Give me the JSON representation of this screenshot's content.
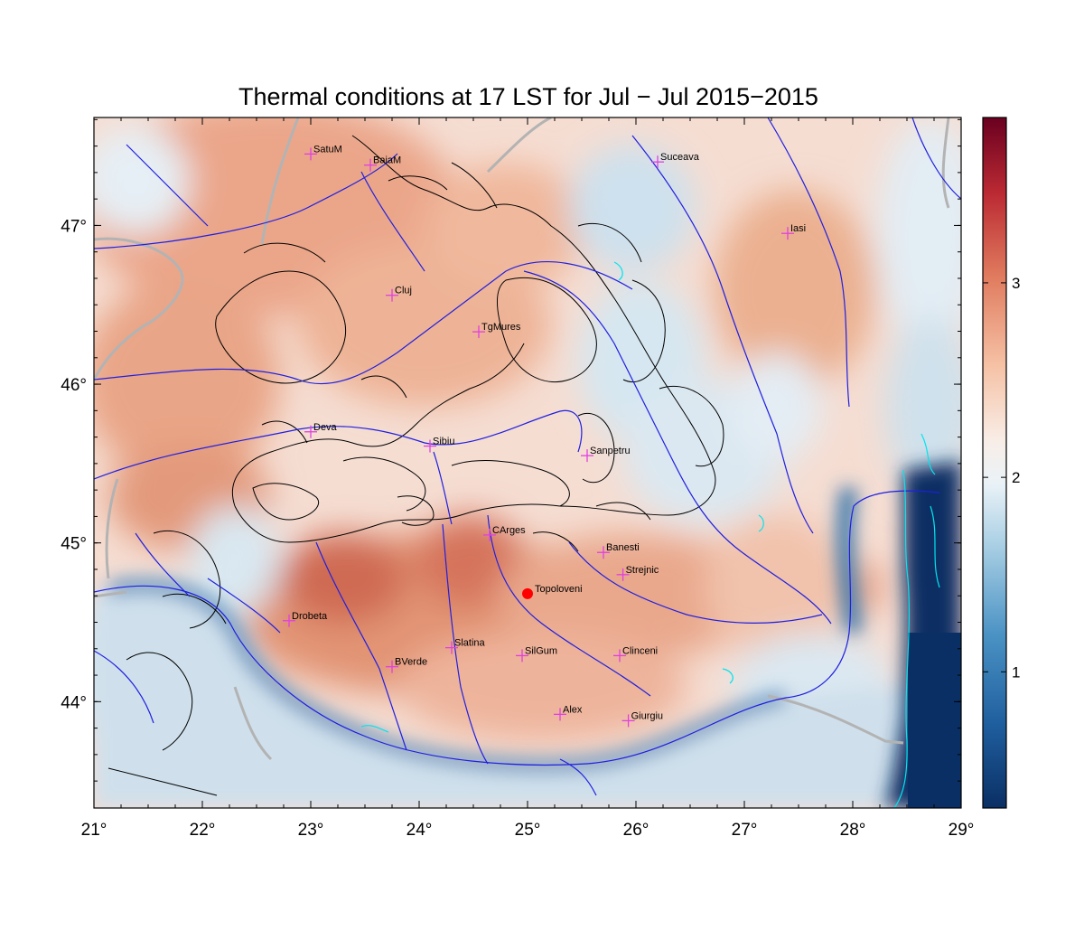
{
  "title": "Thermal conditions at 17 LST for Jul − Jul  2015−2015",
  "map": {
    "lon_range": [
      21,
      29
    ],
    "lat_range": [
      43.33,
      47.68
    ],
    "x_ticks": [
      "21°",
      "22°",
      "23°",
      "24°",
      "25°",
      "26°",
      "27°",
      "28°",
      "29°"
    ],
    "x_tick_values": [
      21,
      22,
      23,
      24,
      25,
      26,
      27,
      28,
      29
    ],
    "y_ticks": [
      "44°",
      "45°",
      "46°",
      "47°"
    ],
    "y_tick_values": [
      44,
      45,
      46,
      47
    ],
    "stations": [
      {
        "name": "SatuM",
        "lon": 23.0,
        "lat": 47.45
      },
      {
        "name": "BaiaM",
        "lon": 23.55,
        "lat": 47.38
      },
      {
        "name": "Suceava",
        "lon": 26.2,
        "lat": 47.4
      },
      {
        "name": "Iasi",
        "lon": 27.4,
        "lat": 46.95
      },
      {
        "name": "Cluj",
        "lon": 23.75,
        "lat": 46.56
      },
      {
        "name": "TgMures",
        "lon": 24.55,
        "lat": 46.33
      },
      {
        "name": "Deva",
        "lon": 23.0,
        "lat": 45.7
      },
      {
        "name": "Sibiu",
        "lon": 24.1,
        "lat": 45.61
      },
      {
        "name": "Sanpetru",
        "lon": 25.55,
        "lat": 45.55
      },
      {
        "name": "CArges",
        "lon": 24.65,
        "lat": 45.05
      },
      {
        "name": "Banesti",
        "lon": 25.7,
        "lat": 44.94
      },
      {
        "name": "Strejnic",
        "lon": 25.88,
        "lat": 44.8
      },
      {
        "name": "Drobeta",
        "lon": 22.8,
        "lat": 44.51
      },
      {
        "name": "Slatina",
        "lon": 24.3,
        "lat": 44.34
      },
      {
        "name": "SilGum",
        "lon": 24.95,
        "lat": 44.29
      },
      {
        "name": "Clinceni",
        "lon": 25.85,
        "lat": 44.29
      },
      {
        "name": "BVerde",
        "lon": 23.75,
        "lat": 44.22
      },
      {
        "name": "Alex",
        "lon": 25.3,
        "lat": 43.92
      },
      {
        "name": "Giurgiu",
        "lon": 25.93,
        "lat": 43.88
      }
    ],
    "highlight_station": {
      "name": "Topoloveni",
      "lon": 25.0,
      "lat": 44.68,
      "color": "#ff0000"
    },
    "station_marker_color": "#e040e0",
    "river_color": "#1f1fe0",
    "border_color": "#b0b0b0",
    "contour_color": "#000000",
    "lake_color": "#00e5ee"
  },
  "colorbar": {
    "ticks": [
      "1",
      "2",
      "3"
    ],
    "tick_values": [
      1,
      2,
      3
    ],
    "range": [
      0.3,
      3.85
    ],
    "colors": [
      "#08306b",
      "#2166ac",
      "#4393c3",
      "#92c5de",
      "#d1e5f0",
      "#f7f7f7",
      "#fddbc7",
      "#f4a582",
      "#d6604d",
      "#b2182b",
      "#67001f"
    ]
  }
}
